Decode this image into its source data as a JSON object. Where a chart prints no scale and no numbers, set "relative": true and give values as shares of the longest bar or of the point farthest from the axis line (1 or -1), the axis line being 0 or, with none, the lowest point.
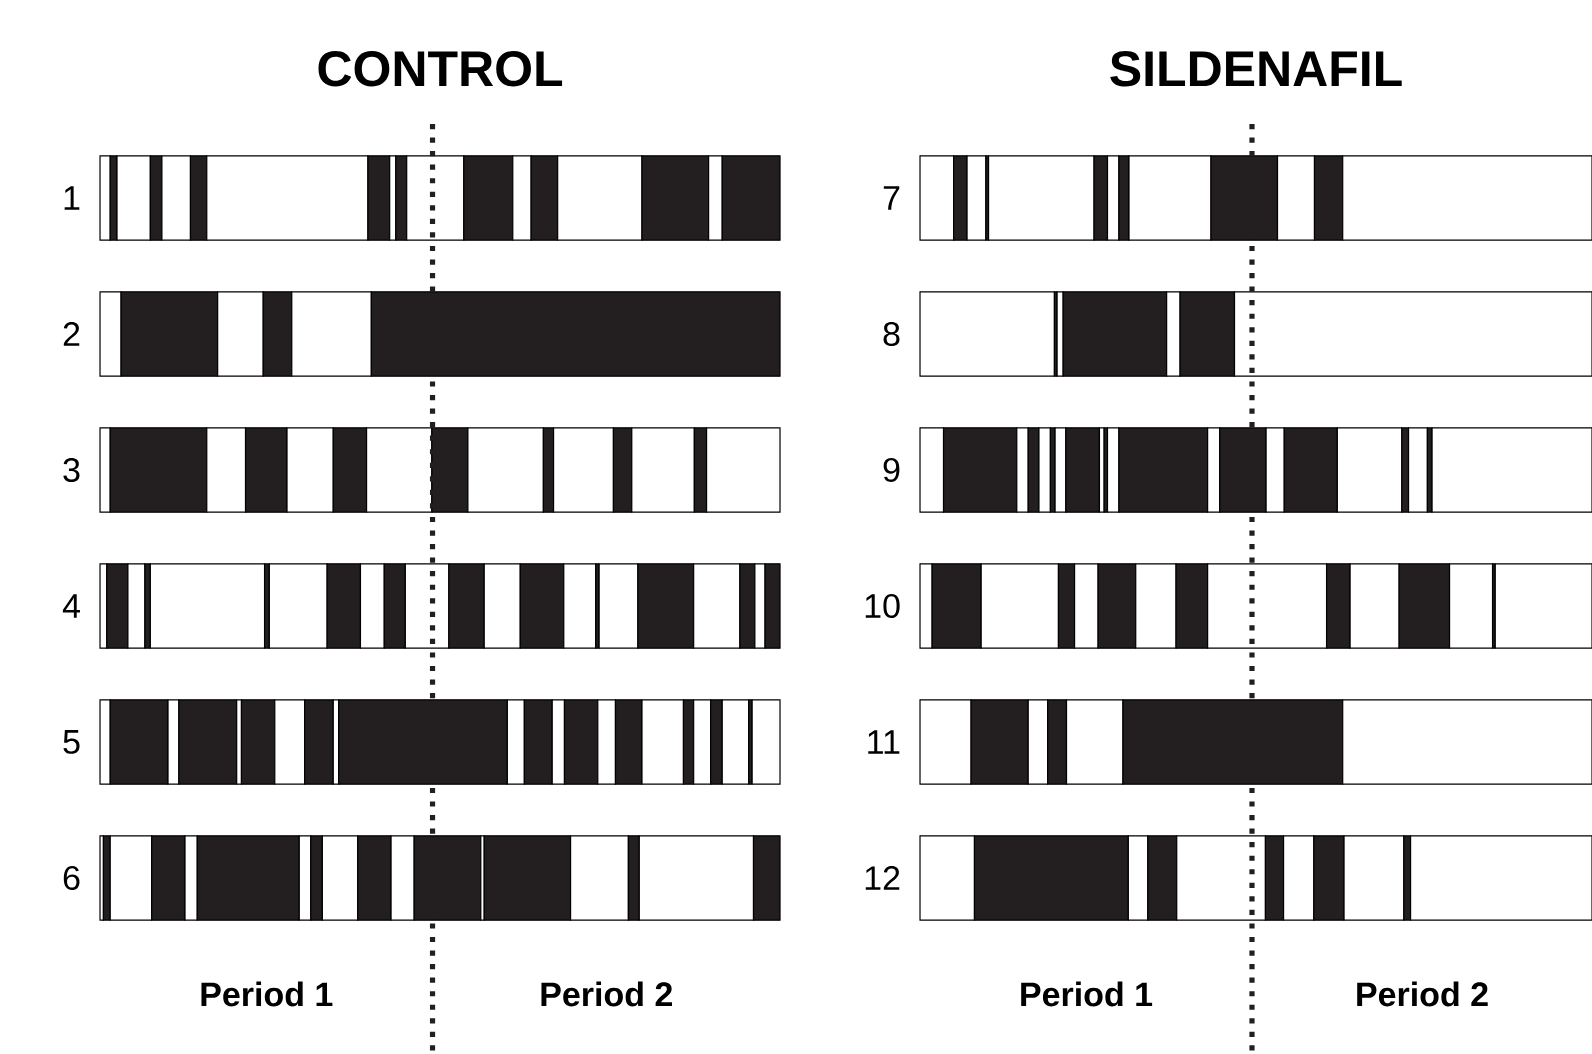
{
  "chart_data": [
    {
      "type": "bar",
      "orientation": "horizontal",
      "stacked": true,
      "relative": true,
      "title": "CONTROL",
      "categories": [
        "1",
        "2",
        "3",
        "4",
        "5",
        "6"
      ],
      "ref_lines": [
        {
          "axis": "x",
          "value": 0.489,
          "line_style": "dotted",
          "color": "#231f20"
        }
      ],
      "annotations": [
        "Period 1",
        "Period 2"
      ],
      "series": [
        {
          "color": "#ffffff",
          "values": [
            0.015,
            0.031,
            0.015,
            0.01,
            0.015,
            0.005
          ]
        },
        {
          "color": "#231f20",
          "values": [
            0.01,
            0.142,
            0.142,
            0.031,
            0.085,
            0.01
          ]
        },
        {
          "color": "#ffffff",
          "values": [
            0.049,
            0.067,
            0.057,
            0.025,
            0.016,
            0.061
          ]
        },
        {
          "color": "#231f20",
          "values": [
            0.017,
            0.042,
            0.061,
            0.008,
            0.085,
            0.049
          ]
        },
        {
          "color": "#ffffff",
          "values": [
            0.042,
            0.117,
            0.068,
            0.168,
            0.007,
            0.018
          ]
        },
        {
          "color": "#231f20",
          "values": [
            0.024,
            0.601,
            0.049,
            0.007,
            0.049,
            0.15
          ]
        },
        {
          "color": "#ffffff",
          "values": [
            0.237,
            null,
            0.096,
            0.085,
            0.044,
            0.017
          ]
        },
        {
          "color": "#231f20",
          "values": [
            0.032,
            null,
            0.053,
            0.049,
            0.042,
            0.017
          ]
        },
        {
          "color": "#ffffff",
          "values": [
            0.009,
            null,
            0.111,
            0.035,
            0.008,
            0.052
          ]
        },
        {
          "color": "#231f20",
          "values": [
            0.016,
            null,
            0.015,
            0.031,
            0.248,
            0.049
          ]
        },
        {
          "color": "#ffffff",
          "values": [
            0.084,
            null,
            0.088,
            0.064,
            0.025,
            0.034
          ]
        },
        {
          "color": "#231f20",
          "values": [
            0.072,
            null,
            0.027,
            0.052,
            0.041,
            0.098
          ]
        },
        {
          "color": "#ffffff",
          "values": [
            0.027,
            null,
            0.092,
            0.053,
            0.018,
            0.005
          ]
        },
        {
          "color": "#231f20",
          "values": [
            0.039,
            null,
            0.018,
            0.064,
            0.049,
            0.127
          ]
        },
        {
          "color": "#ffffff",
          "values": [
            0.124,
            null,
            0.108,
            0.047,
            0.026,
            0.085
          ]
        },
        {
          "color": "#231f20",
          "values": [
            0.098,
            null,
            null,
            0.005,
            0.039,
            0.016
          ]
        },
        {
          "color": "#ffffff",
          "values": [
            0.02,
            null,
            null,
            0.057,
            0.061,
            0.168
          ]
        },
        {
          "color": "#231f20",
          "values": [
            0.085,
            null,
            null,
            0.082,
            0.015,
            0.039
          ]
        },
        {
          "color": "#ffffff",
          "values": [
            null,
            null,
            null,
            0.068,
            0.025,
            null
          ]
        },
        {
          "color": "#231f20",
          "values": [
            null,
            null,
            null,
            0.022,
            0.017,
            null
          ]
        },
        {
          "color": "#ffffff",
          "values": [
            null,
            null,
            null,
            0.015,
            0.039,
            null
          ]
        },
        {
          "color": "#231f20",
          "values": [
            null,
            null,
            null,
            0.022,
            0.005,
            null
          ]
        },
        {
          "color": "#ffffff",
          "values": [
            null,
            null,
            null,
            null,
            0.041,
            null
          ]
        }
      ]
    },
    {
      "type": "bar",
      "orientation": "horizontal",
      "stacked": true,
      "relative": true,
      "title": "SILDENAFIL",
      "categories": [
        "7",
        "8",
        "9",
        "10",
        "11",
        "12"
      ],
      "ref_lines": [
        {
          "axis": "x",
          "value": 0.494,
          "line_style": "dotted",
          "color": "#231f20"
        }
      ],
      "annotations": [
        "Period 1",
        "Period 2"
      ],
      "series": [
        {
          "color": "#ffffff",
          "values": [
            0.05,
            0.2,
            0.035,
            0.018,
            0.076,
            0.081
          ]
        },
        {
          "color": "#231f20",
          "values": [
            0.02,
            0.004,
            0.109,
            0.073,
            0.085,
            0.229
          ]
        },
        {
          "color": "#ffffff",
          "values": [
            0.028,
            0.009,
            0.017,
            0.115,
            0.029,
            0.029
          ]
        },
        {
          "color": "#231f20",
          "values": [
            0.004,
            0.154,
            0.016,
            0.024,
            0.028,
            0.043
          ]
        },
        {
          "color": "#ffffff",
          "values": [
            0.157,
            0.02,
            0.017,
            0.035,
            0.084,
            0.132
          ]
        },
        {
          "color": "#231f20",
          "values": [
            0.02,
            0.081,
            0.007,
            0.056,
            0.327,
            0.027
          ]
        },
        {
          "color": "#ffffff",
          "values": [
            0.017,
            0.532,
            0.016,
            0.06,
            0.371,
            0.045
          ]
        },
        {
          "color": "#231f20",
          "values": [
            0.015,
            null,
            0.05,
            0.047,
            null,
            0.045
          ]
        },
        {
          "color": "#ffffff",
          "values": [
            0.122,
            null,
            0.007,
            0.177,
            null,
            0.089
          ]
        },
        {
          "color": "#231f20",
          "values": [
            0.099,
            null,
            0.005,
            0.035,
            null,
            0.01
          ]
        },
        {
          "color": "#ffffff",
          "values": [
            0.055,
            null,
            0.017,
            0.073,
            null,
            0.27
          ]
        },
        {
          "color": "#231f20",
          "values": [
            0.042,
            null,
            0.132,
            0.075,
            null,
            null
          ]
        },
        {
          "color": "#ffffff",
          "values": [
            0.371,
            null,
            0.018,
            0.064,
            null,
            null
          ]
        },
        {
          "color": "#231f20",
          "values": [
            null,
            null,
            0.069,
            0.004,
            null,
            null
          ]
        },
        {
          "color": "#ffffff",
          "values": [
            null,
            null,
            0.027,
            0.144,
            null,
            null
          ]
        },
        {
          "color": "#231f20",
          "values": [
            null,
            null,
            0.079,
            null,
            null,
            null
          ]
        },
        {
          "color": "#ffffff",
          "values": [
            null,
            null,
            0.096,
            null,
            null,
            null
          ]
        },
        {
          "color": "#231f20",
          "values": [
            null,
            null,
            0.01,
            null,
            null,
            null
          ]
        },
        {
          "color": "#ffffff",
          "values": [
            null,
            null,
            0.028,
            null,
            null,
            null
          ]
        },
        {
          "color": "#231f20",
          "values": [
            null,
            null,
            0.007,
            null,
            null,
            null
          ]
        },
        {
          "color": "#ffffff",
          "values": [
            null,
            null,
            0.238,
            null,
            null,
            null
          ]
        }
      ]
    }
  ]
}
